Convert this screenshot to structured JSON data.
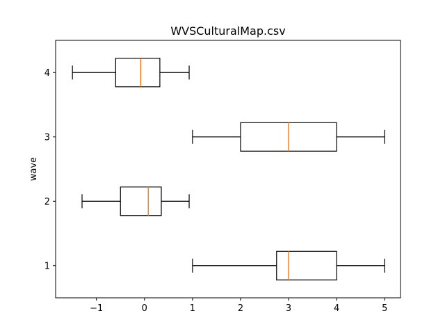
{
  "chart_data": {
    "type": "boxplot",
    "orientation": "horizontal",
    "title": "WVSCulturalMap.csv",
    "xlabel": "",
    "ylabel": "wave",
    "xlim": [
      -1.85,
      5.33
    ],
    "ylim": [
      0.5,
      4.5
    ],
    "xticks": [
      -1,
      0,
      1,
      2,
      3,
      4,
      5
    ],
    "xtick_labels": [
      "−1",
      "0",
      "1",
      "2",
      "3",
      "4",
      "5"
    ],
    "categories": [
      "1",
      "2",
      "3",
      "4"
    ],
    "boxes": [
      {
        "category": "1",
        "whisker_low": 1.0,
        "q1": 2.75,
        "median": 3.0,
        "q3": 4.0,
        "whisker_high": 5.0
      },
      {
        "category": "2",
        "whisker_low": -1.3,
        "q1": -0.5,
        "median": 0.08,
        "q3": 0.35,
        "whisker_high": 0.93
      },
      {
        "category": "3",
        "whisker_low": 1.0,
        "q1": 2.0,
        "median": 3.0,
        "q3": 4.0,
        "whisker_high": 5.0
      },
      {
        "category": "4",
        "whisker_low": -1.5,
        "q1": -0.6,
        "median": -0.08,
        "q3": 0.32,
        "whisker_high": 0.93
      }
    ],
    "colors": {
      "box": "#000000",
      "median": "#ff7f0e"
    },
    "grid": false,
    "legend": "none"
  }
}
